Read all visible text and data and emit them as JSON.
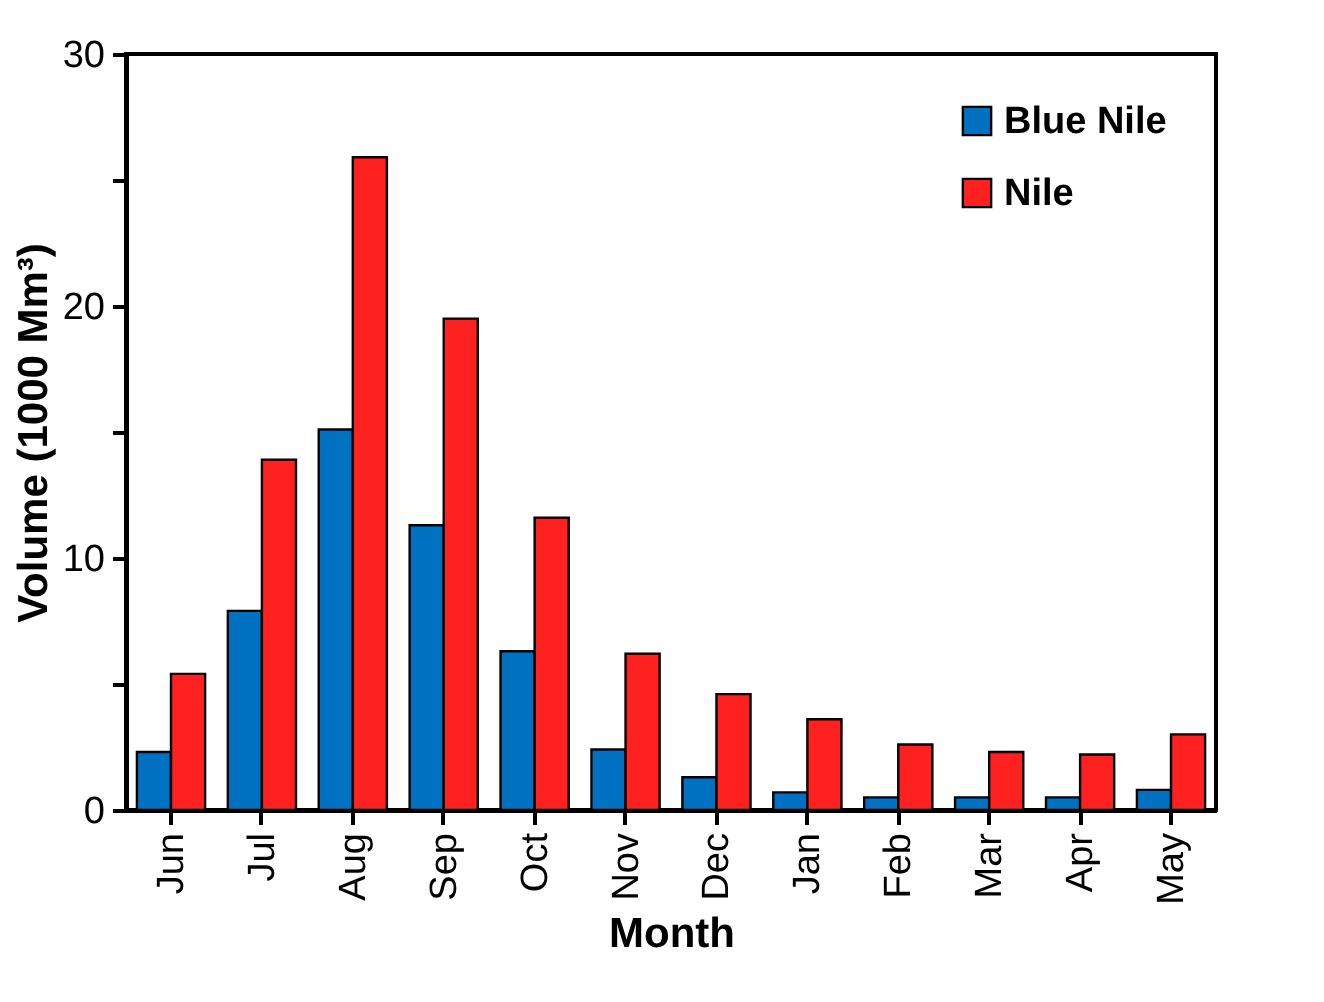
{
  "chart_data": {
    "type": "bar",
    "xlabel": "Month",
    "ylabel": "Volume (1000 Mm³)",
    "categories": [
      "Jun",
      "Jul",
      "Aug",
      "Sep",
      "Oct",
      "Nov",
      "Dec",
      "Jan",
      "Feb",
      "Mar",
      "Apr",
      "May"
    ],
    "series": [
      {
        "name": "Blue Nile",
        "color": "#0070c0",
        "values": [
          2.3,
          7.9,
          15.1,
          11.3,
          6.3,
          2.4,
          1.3,
          0.7,
          0.5,
          0.5,
          0.5,
          0.8
        ]
      },
      {
        "name": "Nile",
        "color": "#ff2020",
        "values": [
          5.4,
          13.9,
          25.9,
          19.5,
          11.6,
          6.2,
          4.6,
          3.6,
          2.6,
          2.3,
          2.2,
          3.0
        ]
      }
    ],
    "ylim": [
      0,
      30
    ],
    "yticks": [
      0,
      {
        "value": 5,
        "label": null
      },
      10,
      {
        "value": 15,
        "label": null
      },
      20,
      {
        "value": 25,
        "label": null
      },
      30
    ],
    "grid": false,
    "legend": "top right"
  }
}
